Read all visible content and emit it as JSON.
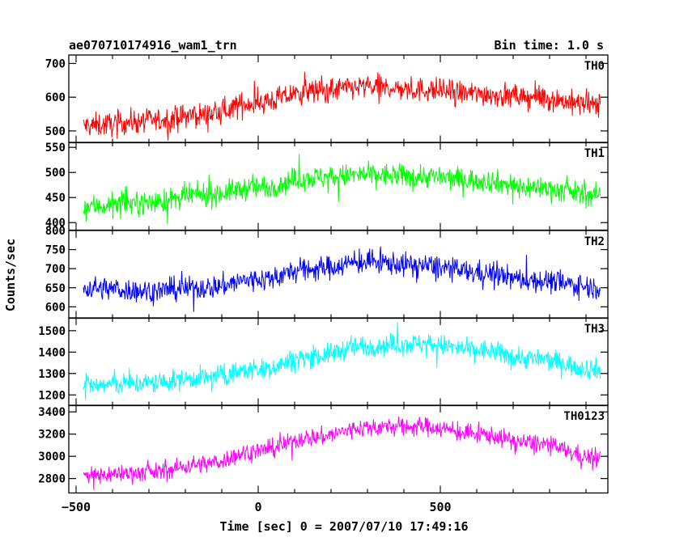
{
  "chart_data": {
    "type": "line",
    "title": "ae070710174916_wam1_trn",
    "subtitle": "Bin time: 1.0 s",
    "xlabel": "Time [sec] 0 = 2007/07/10 17:49:16",
    "ylabel": "Counts/sec",
    "xlim": [
      -520,
      960
    ],
    "xticks": [
      -500,
      0,
      500
    ],
    "grid": false,
    "panels": [
      {
        "name": "TH0",
        "color": "#ff0000",
        "ylim": [
          465,
          725
        ],
        "yticks": [
          500,
          600,
          700
        ],
        "x": [
          -480,
          -300,
          -150,
          0,
          150,
          300,
          450,
          600,
          750,
          940
        ],
        "y": [
          515,
          530,
          548,
          585,
          618,
          630,
          622,
          610,
          600,
          575
        ],
        "spread": 65
      },
      {
        "name": "TH1",
        "color": "#00ff00",
        "ylim": [
          385,
          560
        ],
        "yticks": [
          400,
          450,
          500,
          550
        ],
        "x": [
          -480,
          -300,
          -150,
          0,
          150,
          300,
          450,
          600,
          750,
          940
        ],
        "y": [
          432,
          440,
          455,
          470,
          490,
          495,
          492,
          485,
          470,
          455
        ],
        "spread": 42
      },
      {
        "name": "TH2",
        "color": "#0000ff",
        "ylim": [
          570,
          800
        ],
        "yticks": [
          600,
          650,
          700,
          750,
          800
        ],
        "x": [
          -480,
          -300,
          -150,
          0,
          150,
          300,
          450,
          600,
          750,
          940
        ],
        "y": [
          650,
          642,
          650,
          672,
          700,
          718,
          708,
          690,
          670,
          652
        ],
        "spread": 55
      },
      {
        "name": "TH3",
        "color": "#00ffff",
        "ylim": [
          1150,
          1560
        ],
        "yticks": [
          1200,
          1300,
          1400,
          1500
        ],
        "x": [
          -480,
          -300,
          -150,
          0,
          150,
          300,
          450,
          600,
          750,
          940
        ],
        "y": [
          1245,
          1255,
          1280,
          1320,
          1380,
          1430,
          1440,
          1410,
          1370,
          1320
        ],
        "spread": 90
      },
      {
        "name": "TH0123",
        "color": "#ff00ff",
        "ylim": [
          2670,
          3460
        ],
        "yticks": [
          2800,
          3000,
          3200,
          3400
        ],
        "x": [
          -480,
          -300,
          -150,
          0,
          150,
          300,
          450,
          600,
          750,
          940
        ],
        "y": [
          2830,
          2855,
          2930,
          3050,
          3170,
          3260,
          3270,
          3200,
          3120,
          2980
        ],
        "spread": 150
      }
    ]
  }
}
